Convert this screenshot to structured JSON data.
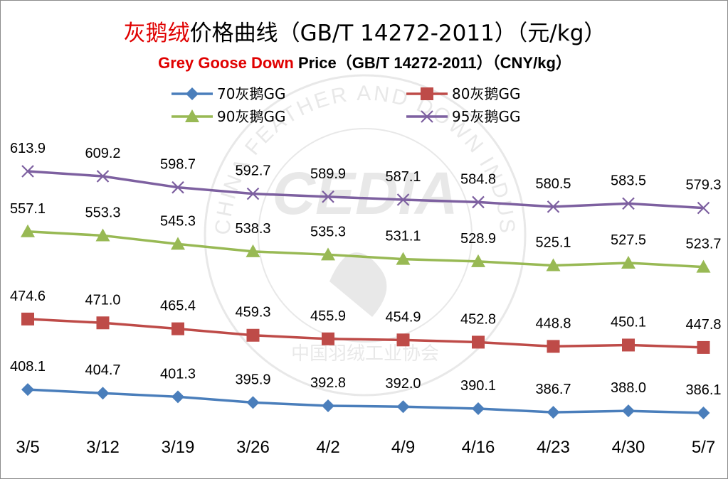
{
  "title_cn": {
    "highlight": "灰鹅绒",
    "rest": "价格曲线（GB/T 14272-2011）（元/kg）"
  },
  "title_en": {
    "highlight": "Grey Goose Down",
    "rest": " Price（GB/T 14272-2011）（CNY/kg）"
  },
  "watermark": {
    "logo_text": "CEDIA",
    "ring_text_en": "CHINA FEATHER AND DOWN INDUSTRIAL ASSOCIATION",
    "ring_text_cn": "中国羽绒工业协会"
  },
  "chart_data": {
    "type": "line",
    "categories": [
      "3/5",
      "3/12",
      "3/19",
      "3/26",
      "4/2",
      "4/9",
      "4/16",
      "4/23",
      "4/30",
      "5/7"
    ],
    "series": [
      {
        "name": "70灰鹅GG",
        "color": "#4a7ebb",
        "marker": "diamond",
        "values": [
          408.1,
          404.7,
          401.3,
          395.9,
          392.8,
          392.0,
          390.1,
          386.7,
          388.0,
          386.1
        ],
        "labels": [
          "408.1",
          "404.7",
          "401.3",
          "395.9",
          "392.8",
          "392.0",
          "390.1",
          "386.7",
          "388.0",
          "386.1"
        ]
      },
      {
        "name": "80灰鹅GG",
        "color": "#be4b48",
        "marker": "square",
        "values": [
          474.6,
          471.0,
          465.4,
          459.3,
          455.9,
          454.9,
          452.8,
          448.8,
          450.1,
          447.8
        ],
        "labels": [
          "474.6",
          "471.0",
          "465.4",
          "459.3",
          "455.9",
          "454.9",
          "452.8",
          "448.8",
          "450.1",
          "447.8"
        ]
      },
      {
        "name": "90灰鹅GG",
        "color": "#98b954",
        "marker": "triangle",
        "values": [
          557.1,
          553.3,
          545.3,
          538.3,
          535.3,
          531.1,
          528.9,
          525.1,
          527.5,
          523.7
        ],
        "labels": [
          "557.1",
          "553.3",
          "545.3",
          "538.3",
          "535.3",
          "531.1",
          "528.9",
          "525.1",
          "527.5",
          "523.7"
        ]
      },
      {
        "name": "95灰鹅GG",
        "color": "#7d60a0",
        "marker": "x",
        "values": [
          613.9,
          609.2,
          598.7,
          592.7,
          589.9,
          587.1,
          584.8,
          580.5,
          583.5,
          579.3
        ],
        "labels": [
          "613.9",
          "609.2",
          "598.7",
          "592.7",
          "589.9",
          "587.1",
          "584.8",
          "580.5",
          "583.5",
          "579.3"
        ]
      }
    ],
    "legend_position": "top",
    "grid": false,
    "y_axis_visible": false
  }
}
